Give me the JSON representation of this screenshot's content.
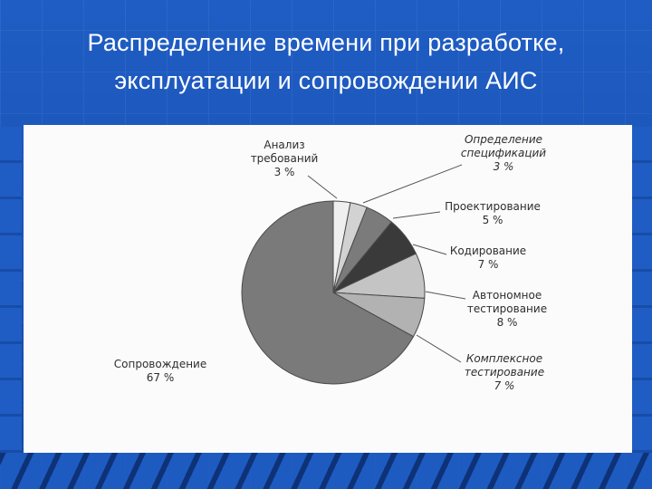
{
  "slide": {
    "title_line1": "Распределение времени при разработке,",
    "title_line2": "эксплуатации и сопровождении АИС"
  },
  "chart_data": {
    "type": "pie",
    "slices": [
      {
        "name": "Анализ требований",
        "lines": [
          "Анализ",
          "требований"
        ],
        "value": 3,
        "value_label": "3 %",
        "color": "#efefef"
      },
      {
        "name": "Определение спецификаций",
        "lines": [
          "Определение",
          "спецификаций"
        ],
        "value": 3,
        "value_label": "3 %",
        "color": "#d2d2d2"
      },
      {
        "name": "Проектирование",
        "lines": [
          "Проектирование"
        ],
        "value": 5,
        "value_label": "5 %",
        "color": "#7b7b7b"
      },
      {
        "name": "Кодирование",
        "lines": [
          "Кодирование"
        ],
        "value": 7,
        "value_label": "7 %",
        "color": "#3a3a3a"
      },
      {
        "name": "Автономное тестирование",
        "lines": [
          "Автономное",
          "тестирование"
        ],
        "value": 8,
        "value_label": "8 %",
        "color": "#c4c4c4"
      },
      {
        "name": "Комплексное тестирование",
        "lines": [
          "Комплексное",
          "тестирование"
        ],
        "value": 7,
        "value_label": "7 %",
        "color": "#b2b2b2"
      },
      {
        "name": "Сопровождение",
        "lines": [
          "Сопровождение"
        ],
        "value": 67,
        "value_label": "67 %",
        "color": "#7a7a7a"
      }
    ]
  }
}
